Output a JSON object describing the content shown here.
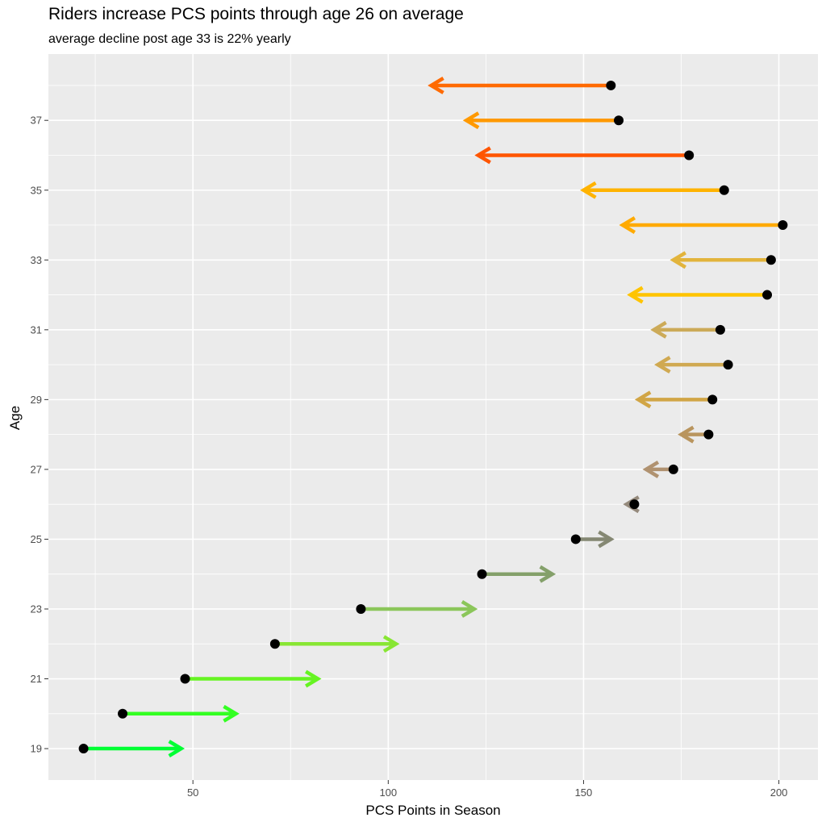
{
  "chart_data": {
    "type": "arrow",
    "title": "Riders increase PCS points through age 26 on average",
    "subtitle": "average decline post age 33 is 22% yearly",
    "xlabel": "PCS Points in Season",
    "ylabel": "Age",
    "xlim": [
      13,
      210
    ],
    "ylim": [
      18.1,
      38.9
    ],
    "x_ticks": [
      50,
      100,
      150,
      200
    ],
    "y_ticks": [
      19,
      21,
      23,
      25,
      27,
      29,
      31,
      33,
      35,
      37
    ],
    "grid": true,
    "legend": "none",
    "panel_background": "#ebebeb",
    "grid_color": "#ffffff",
    "point_color": "#000000",
    "points": [
      {
        "age": 19,
        "start": 22,
        "end": 47,
        "color": "#00ff33"
      },
      {
        "age": 20,
        "start": 32,
        "end": 61,
        "color": "#33ff22"
      },
      {
        "age": 21,
        "start": 48,
        "end": 82,
        "color": "#66f422"
      },
      {
        "age": 22,
        "start": 71,
        "end": 102,
        "color": "#88e633"
      },
      {
        "age": 23,
        "start": 93,
        "end": 122,
        "color": "#8bc65a"
      },
      {
        "age": 24,
        "start": 124,
        "end": 142,
        "color": "#84a06a"
      },
      {
        "age": 25,
        "start": 148,
        "end": 157,
        "color": "#858873"
      },
      {
        "age": 26,
        "start": 163,
        "end": 161,
        "color": "#958a7c"
      },
      {
        "age": 27,
        "start": 173,
        "end": 166,
        "color": "#b09270"
      },
      {
        "age": 28,
        "start": 182,
        "end": 175,
        "color": "#b9955e"
      },
      {
        "age": 29,
        "start": 183,
        "end": 164,
        "color": "#d1a545"
      },
      {
        "age": 30,
        "start": 187,
        "end": 169,
        "color": "#d0a951"
      },
      {
        "age": 31,
        "start": 185,
        "end": 168,
        "color": "#ccaa58"
      },
      {
        "age": 32,
        "start": 197,
        "end": 162,
        "color": "#ffc400"
      },
      {
        "age": 33,
        "start": 198,
        "end": 173,
        "color": "#e2b43c"
      },
      {
        "age": 34,
        "start": 201,
        "end": 160,
        "color": "#ffaa00"
      },
      {
        "age": 35,
        "start": 186,
        "end": 150,
        "color": "#ffb300"
      },
      {
        "age": 36,
        "start": 177,
        "end": 123,
        "color": "#ff5500"
      },
      {
        "age": 37,
        "start": 159,
        "end": 120,
        "color": "#ff9900"
      },
      {
        "age": 38,
        "start": 157,
        "end": 111,
        "color": "#ff6a00"
      }
    ]
  }
}
